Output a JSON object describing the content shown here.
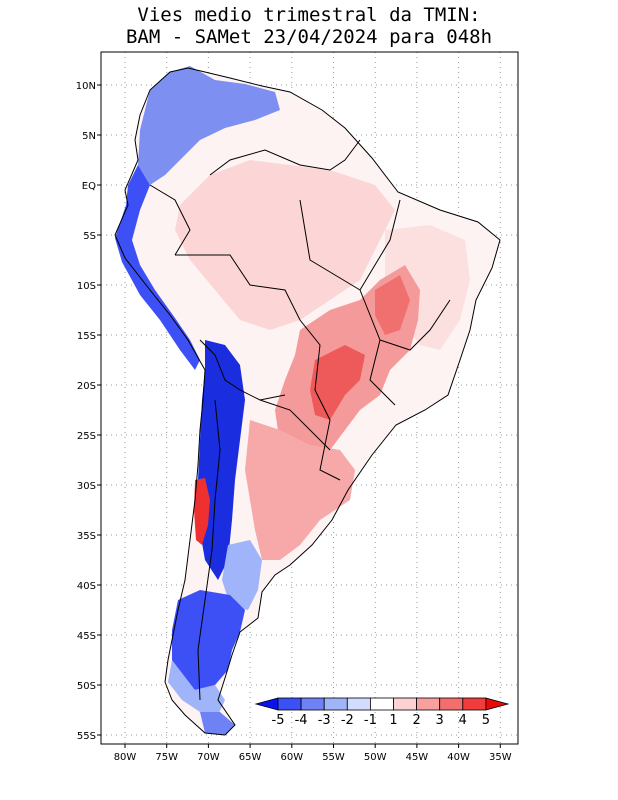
{
  "title_line1": "Vies medio trimestral da TMIN:",
  "title_line2": "BAM - SAMet 23/04/2024  para 048h",
  "lat_labels": [
    "10N",
    "5N",
    "EQ",
    "5S",
    "10S",
    "15S",
    "20S",
    "25S",
    "30S",
    "35S",
    "40S",
    "45S",
    "50S",
    "55S"
  ],
  "lon_labels": [
    "80W",
    "75W",
    "70W",
    "65W",
    "60W",
    "55W",
    "50W",
    "45W",
    "40W",
    "35W"
  ],
  "colorbar": {
    "labels": [
      "-5",
      "-4",
      "-3",
      "-2",
      "-1",
      "1",
      "2",
      "3",
      "4",
      "5"
    ],
    "colors": [
      "#0a14f0",
      "#3c50f5",
      "#6e82f5",
      "#a0b4fa",
      "#d2dcfc",
      "#ffffff",
      "#fcd2d2",
      "#f8a0a0",
      "#f56e6e",
      "#f03c3c",
      "#e60a0a"
    ]
  },
  "colors": {
    "frame": "#000000",
    "grid": "#999999",
    "cold_strong": "#1a2ee0",
    "cold_mid": "#7d8ff0",
    "cold_light": "#d2dcfc",
    "warm_light": "#fcd6d6",
    "warm_mid": "#f59090",
    "warm_strong": "#ee3030"
  }
}
